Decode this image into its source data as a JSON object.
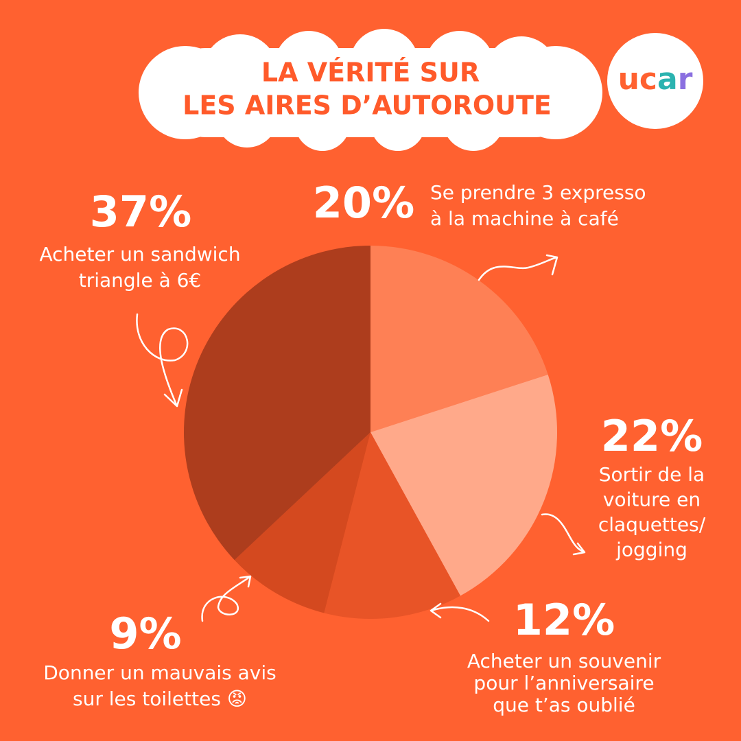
{
  "chart_data": {
    "type": "pie",
    "title": [
      "LA VÉRITÉ SUR",
      "LES AIRES D’AUTOROUTE"
    ],
    "logo": "ucar",
    "categories": [
      [
        "Se prendre 3 expresso",
        "à la machine à café"
      ],
      [
        "Sortir de la",
        "voiture en",
        "claquettes/",
        "jogging"
      ],
      [
        "Acheter un souvenir",
        "pour l’anniversaire",
        "que t’as oublié"
      ],
      [
        "Donner un mauvais avis",
        "sur les toilettes 😡"
      ],
      [
        "Acheter un sandwich",
        "triangle à 6€"
      ]
    ],
    "values": [
      20,
      22,
      12,
      9,
      37
    ],
    "value_labels": [
      "20%",
      "22%",
      "12%",
      "9%",
      "37%"
    ],
    "colors": [
      "#fe8055",
      "#ffa98a",
      "#e85427",
      "#d4491f",
      "#ad3d1d"
    ]
  }
}
